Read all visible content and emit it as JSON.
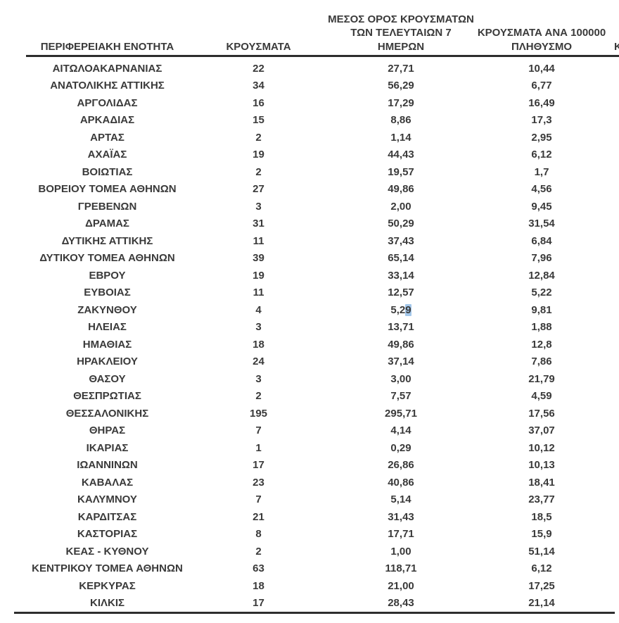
{
  "table": {
    "columns": [
      {
        "id": "region",
        "label": "ΠΕΡΙΦΕΡΕΙΑΚΗ ΕΝΟΤΗΤΑ",
        "label_lines": [
          "ΠΕΡΙΦΕΡΕΙΑΚΗ ΕΝΟΤΗΤΑ"
        ]
      },
      {
        "id": "cases",
        "label": "ΚΡΟΥΣΜΑΤΑ",
        "label_lines": [
          "ΚΡΟΥΣΜΑΤΑ"
        ]
      },
      {
        "id": "avg7",
        "label": "ΜΕΣΟΣ ΟΡΟΣ ΚΡΟΥΣΜΑΤΩΝ ΤΩΝ ΤΕΛΕΥΤΑΙΩΝ 7 ΗΜΕΡΩΝ",
        "label_lines": [
          "ΜΕΣΟΣ ΟΡΟΣ ΚΡΟΥΣΜΑΤΩΝ",
          "ΤΩΝ ΤΕΛΕΥΤΑΙΩΝ 7",
          "ΗΜΕΡΩΝ"
        ]
      },
      {
        "id": "per100k",
        "label": "ΚΡΟΥΣΜΑΤΑ ΑΝΑ 100000 ΠΛΗΘΥΣΜΟ",
        "label_lines": [
          "ΚΡΟΥΣΜΑΤΑ ΑΝΑ 100000",
          "ΠΛΗΘΥΣΜΟ"
        ]
      },
      {
        "id": "clipped",
        "label": "Κ",
        "label_lines": [
          "Κ"
        ],
        "clipped": true
      }
    ],
    "rows": [
      [
        "ΑΙΤΩΛΟΑΚΑΡΝΑΝΙΑΣ",
        "22",
        "27,71",
        "10,44"
      ],
      [
        "ΑΝΑΤΟΛΙΚΗΣ ΑΤΤΙΚΗΣ",
        "34",
        "56,29",
        "6,77"
      ],
      [
        "ΑΡΓΟΛΙΔΑΣ",
        "16",
        "17,29",
        "16,49"
      ],
      [
        "ΑΡΚΑΔΙΑΣ",
        "15",
        "8,86",
        "17,3"
      ],
      [
        "ΑΡΤΑΣ",
        "2",
        "1,14",
        "2,95"
      ],
      [
        "ΑΧΑΪΑΣ",
        "19",
        "44,43",
        "6,12"
      ],
      [
        "ΒΟΙΩΤΙΑΣ",
        "2",
        "19,57",
        "1,7"
      ],
      [
        "ΒΟΡΕΙΟΥ ΤΟΜΕΑ ΑΘΗΝΩΝ",
        "27",
        "49,86",
        "4,56"
      ],
      [
        "ΓΡΕΒΕΝΩΝ",
        "3",
        "2,00",
        "9,45"
      ],
      [
        "ΔΡΑΜΑΣ",
        "31",
        "50,29",
        "31,54"
      ],
      [
        "ΔΥΤΙΚΗΣ ΑΤΤΙΚΗΣ",
        "11",
        "37,43",
        "6,84"
      ],
      [
        "ΔΥΤΙΚΟΥ ΤΟΜΕΑ ΑΘΗΝΩΝ",
        "39",
        "65,14",
        "7,96"
      ],
      [
        "ΕΒΡΟΥ",
        "19",
        "33,14",
        "12,84"
      ],
      [
        "ΕΥΒΟΙΑΣ",
        "11",
        "12,57",
        "5,22"
      ],
      [
        "ΖΑΚΥΝΘΟΥ",
        "4",
        "5,29",
        "9,81"
      ],
      [
        "ΗΛΕΙΑΣ",
        "3",
        "13,71",
        "1,88"
      ],
      [
        "ΗΜΑΘΙΑΣ",
        "18",
        "49,86",
        "12,8"
      ],
      [
        "ΗΡΑΚΛΕΙΟΥ",
        "24",
        "37,14",
        "7,86"
      ],
      [
        "ΘΑΣΟΥ",
        "3",
        "3,00",
        "21,79"
      ],
      [
        "ΘΕΣΠΡΩΤΙΑΣ",
        "2",
        "7,57",
        "4,59"
      ],
      [
        "ΘΕΣΣΑΛΟΝΙΚΗΣ",
        "195",
        "295,71",
        "17,56"
      ],
      [
        "ΘΗΡΑΣ",
        "7",
        "4,14",
        "37,07"
      ],
      [
        "ΙΚΑΡΙΑΣ",
        "1",
        "0,29",
        "10,12"
      ],
      [
        "ΙΩΑΝΝΙΝΩΝ",
        "17",
        "26,86",
        "10,13"
      ],
      [
        "ΚΑΒΑΛΑΣ",
        "23",
        "40,86",
        "18,41"
      ],
      [
        "ΚΑΛΥΜΝΟΥ",
        "7",
        "5,14",
        "23,77"
      ],
      [
        "ΚΑΡΔΙΤΣΑΣ",
        "21",
        "31,43",
        "18,5"
      ],
      [
        "ΚΑΣΤΟΡΙΑΣ",
        "8",
        "17,71",
        "15,9"
      ],
      [
        "ΚΕΑΣ - ΚΥΘΝΟΥ",
        "2",
        "1,00",
        "51,14"
      ],
      [
        "ΚΕΝΤΡΙΚΟΥ ΤΟΜΕΑ ΑΘΗΝΩΝ",
        "63",
        "118,71",
        "6,12"
      ],
      [
        "ΚΕΡΚΥΡΑΣ",
        "18",
        "21,00",
        "17,25"
      ],
      [
        "ΚΙΛΚΙΣ",
        "17",
        "28,43",
        "21,14"
      ]
    ],
    "selection": {
      "row_index": 14,
      "col_index": 2,
      "before": "5,2",
      "selected": "9",
      "after": "",
      "highlight_color": "#a3c7ea"
    }
  },
  "colors": {
    "background": "#ffffff",
    "text": "#3a3a3a",
    "rule": "#2d2d2d",
    "selection_highlight": "#a3c7ea"
  }
}
